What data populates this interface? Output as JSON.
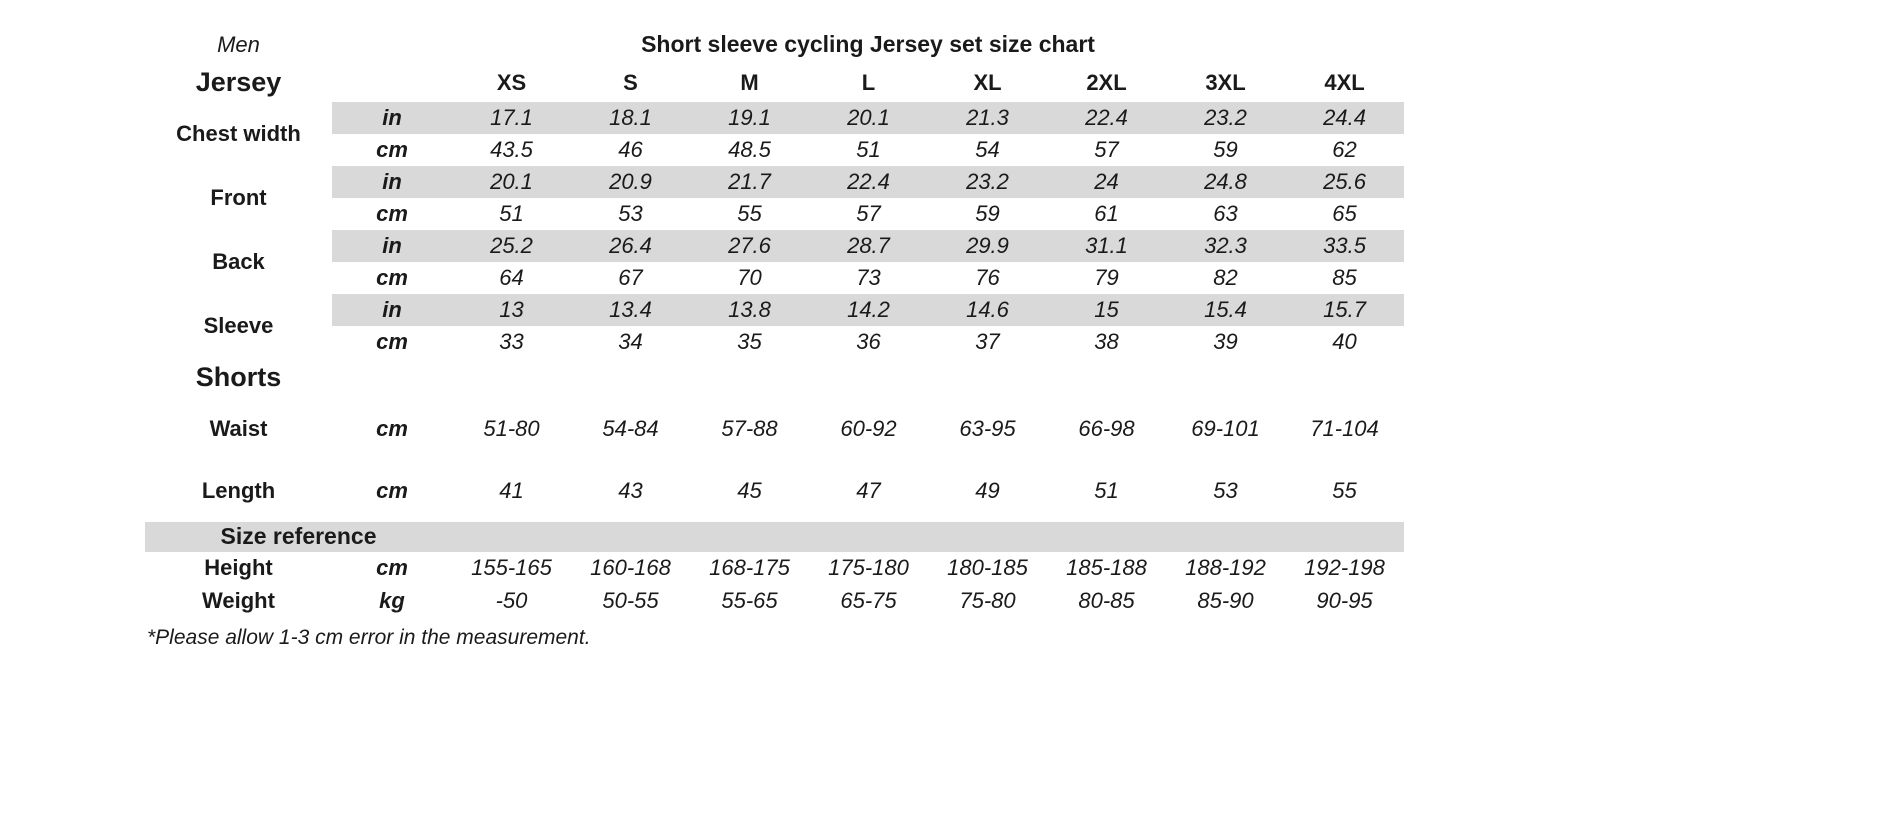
{
  "chart_data": {
    "type": "table",
    "gender": "Men",
    "title": "Short sleeve cycling Jersey set size chart",
    "sizes": [
      "XS",
      "S",
      "M",
      "L",
      "XL",
      "2XL",
      "3XL",
      "4XL"
    ],
    "jersey": {
      "label": "Jersey",
      "rows": [
        {
          "label": "Chest width",
          "units": [
            "in",
            "cm"
          ],
          "in": [
            "17.1",
            "18.1",
            "19.1",
            "20.1",
            "21.3",
            "22.4",
            "23.2",
            "24.4"
          ],
          "cm": [
            "43.5",
            "46",
            "48.5",
            "51",
            "54",
            "57",
            "59",
            "62"
          ]
        },
        {
          "label": "Front",
          "units": [
            "in",
            "cm"
          ],
          "in": [
            "20.1",
            "20.9",
            "21.7",
            "22.4",
            "23.2",
            "24",
            "24.8",
            "25.6"
          ],
          "cm": [
            "51",
            "53",
            "55",
            "57",
            "59",
            "61",
            "63",
            "65"
          ]
        },
        {
          "label": "Back",
          "units": [
            "in",
            "cm"
          ],
          "in": [
            "25.2",
            "26.4",
            "27.6",
            "28.7",
            "29.9",
            "31.1",
            "32.3",
            "33.5"
          ],
          "cm": [
            "64",
            "67",
            "70",
            "73",
            "76",
            "79",
            "82",
            "85"
          ]
        },
        {
          "label": "Sleeve",
          "units": [
            "in",
            "cm"
          ],
          "in": [
            "13",
            "13.4",
            "13.8",
            "14.2",
            "14.6",
            "15",
            "15.4",
            "15.7"
          ],
          "cm": [
            "33",
            "34",
            "35",
            "36",
            "37",
            "38",
            "39",
            "40"
          ]
        }
      ]
    },
    "shorts": {
      "label": "Shorts",
      "rows": [
        {
          "label": "Waist",
          "unit": "cm",
          "values": [
            "51-80",
            "54-84",
            "57-88",
            "60-92",
            "63-95",
            "66-98",
            "69-101",
            "71-104"
          ]
        },
        {
          "label": "Length",
          "unit": "cm",
          "values": [
            "41",
            "43",
            "45",
            "47",
            "49",
            "51",
            "53",
            "55"
          ]
        }
      ]
    },
    "sizeref": {
      "label": "Size reference",
      "rows": [
        {
          "label": "Height",
          "unit": "cm",
          "values": [
            "155-165",
            "160-168",
            "168-175",
            "175-180",
            "180-185",
            "185-188",
            "188-192",
            "192-198"
          ]
        },
        {
          "label": "Weight",
          "unit": "kg",
          "values": [
            "-50",
            "50-55",
            "55-65",
            "65-75",
            "75-80",
            "80-85",
            "85-90",
            "90-95"
          ]
        }
      ]
    },
    "footnote": "*Please allow 1-3 cm error in the measurement."
  },
  "colors": {
    "stripe_gray": "#d9d9d9",
    "text": "#1a1a1a",
    "background": "#ffffff"
  }
}
